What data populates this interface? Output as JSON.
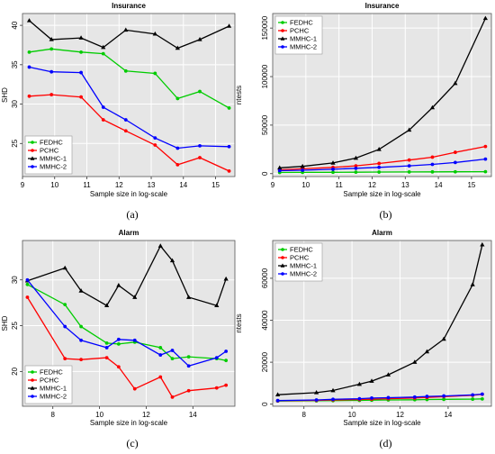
{
  "chart_data": [
    {
      "type": "line",
      "panel_label": "(a)",
      "title": "Insurance",
      "xlabel": "Sample size in log-scale",
      "ylabel": "SHD",
      "xlim": [
        9,
        15.6
      ],
      "ylim": [
        20.8,
        41.5
      ],
      "xticks": [
        9,
        10,
        11,
        12,
        13,
        14,
        15
      ],
      "yticks": [
        25,
        30,
        35,
        40
      ],
      "grid": true,
      "legend_position": "bottom-left",
      "x": [
        9.21,
        9.9,
        10.82,
        11.51,
        12.21,
        13.12,
        13.82,
        14.51,
        15.42
      ],
      "series": [
        {
          "name": "FEDHC",
          "color": "#00cc00",
          "marker": "circle",
          "values": [
            36.6,
            37.0,
            36.6,
            36.4,
            34.2,
            33.9,
            30.7,
            31.6,
            29.5
          ]
        },
        {
          "name": "PCHC",
          "color": "#ff0000",
          "marker": "circle",
          "values": [
            31.0,
            31.2,
            30.9,
            28.0,
            26.6,
            24.8,
            22.3,
            23.2,
            21.5
          ]
        },
        {
          "name": "MMHC-1",
          "color": "#000000",
          "marker": "triangle",
          "values": [
            40.6,
            38.2,
            38.4,
            37.2,
            39.4,
            38.9,
            37.1,
            38.2,
            39.9
          ]
        },
        {
          "name": "MMHC-2",
          "color": "#0000ff",
          "marker": "circle",
          "values": [
            34.7,
            34.1,
            34.0,
            29.6,
            28.0,
            25.7,
            24.4,
            24.7,
            24.6
          ]
        }
      ]
    },
    {
      "type": "line",
      "panel_label": "(b)",
      "title": "Insurance",
      "xlabel": "Sample size in log-scale",
      "ylabel": "ntests",
      "xlim": [
        9,
        15.6
      ],
      "ylim": [
        -3000,
        165000
      ],
      "xticks": [
        9,
        10,
        11,
        12,
        13,
        14,
        15
      ],
      "yticks": [
        0,
        50000,
        100000,
        150000
      ],
      "grid": true,
      "legend_position": "top-left",
      "x": [
        9.21,
        9.9,
        10.82,
        11.51,
        12.21,
        13.12,
        13.82,
        14.51,
        15.42
      ],
      "series": [
        {
          "name": "FEDHC",
          "color": "#00cc00",
          "marker": "circle",
          "values": [
            1200,
            1300,
            1400,
            1500,
            1600,
            1700,
            1800,
            1900,
            2000
          ]
        },
        {
          "name": "PCHC",
          "color": "#ff0000",
          "marker": "circle",
          "values": [
            4000,
            5000,
            6500,
            8000,
            10500,
            14000,
            17000,
            22000,
            28000
          ]
        },
        {
          "name": "MMHC-1",
          "color": "#000000",
          "marker": "triangle",
          "values": [
            6000,
            7500,
            11000,
            16000,
            25000,
            45000,
            68000,
            93000,
            160000
          ]
        },
        {
          "name": "MMHC-2",
          "color": "#0000ff",
          "marker": "circle",
          "values": [
            3000,
            3500,
            4500,
            5500,
            6500,
            8000,
            9500,
            11500,
            15000
          ]
        }
      ]
    },
    {
      "type": "line",
      "panel_label": "(c)",
      "title": "Alarm",
      "xlabel": "Sample size in log-scale",
      "ylabel": "SHD",
      "xlim": [
        6.7,
        15.8
      ],
      "ylim": [
        16.2,
        34.3
      ],
      "xticks": [
        8,
        10,
        12,
        14
      ],
      "yticks": [
        20,
        25,
        30
      ],
      "grid": true,
      "legend_position": "bottom-left",
      "x": [
        6.91,
        8.52,
        9.21,
        10.31,
        10.82,
        11.51,
        12.61,
        13.12,
        13.82,
        15.02,
        15.42
      ],
      "series": [
        {
          "name": "FEDHC",
          "color": "#00cc00",
          "marker": "circle",
          "values": [
            29.5,
            27.3,
            24.9,
            23.1,
            23.0,
            23.2,
            22.6,
            21.4,
            21.6,
            21.4,
            21.2
          ]
        },
        {
          "name": "PCHC",
          "color": "#ff0000",
          "marker": "circle",
          "values": [
            28.1,
            21.4,
            21.3,
            21.5,
            20.5,
            18.1,
            19.4,
            17.2,
            17.9,
            18.2,
            18.5
          ]
        },
        {
          "name": "MMHC-1",
          "color": "#000000",
          "marker": "triangle",
          "values": [
            29.9,
            31.3,
            28.8,
            27.2,
            29.4,
            28.1,
            33.7,
            32.1,
            28.1,
            27.2,
            30.1
          ]
        },
        {
          "name": "MMHC-2",
          "color": "#0000ff",
          "marker": "circle",
          "values": [
            30.0,
            24.9,
            23.4,
            22.6,
            23.5,
            23.4,
            21.8,
            22.3,
            20.6,
            21.5,
            22.2
          ]
        }
      ]
    },
    {
      "type": "line",
      "panel_label": "(d)",
      "title": "Alarm",
      "xlabel": "Sample size in log-scale",
      "ylabel": "ntests",
      "xlim": [
        6.7,
        15.8
      ],
      "ylim": [
        -1000,
        78000
      ],
      "xticks": [
        8,
        10,
        12,
        14
      ],
      "yticks": [
        0,
        20000,
        40000,
        60000
      ],
      "grid": true,
      "legend_position": "top-left",
      "x": [
        6.91,
        8.52,
        9.21,
        10.31,
        10.82,
        11.51,
        12.61,
        13.12,
        13.82,
        15.02,
        15.42
      ],
      "series": [
        {
          "name": "FEDHC",
          "color": "#00cc00",
          "marker": "circle",
          "values": [
            1500,
            1600,
            1700,
            1800,
            1900,
            2000,
            2100,
            2200,
            2300,
            2400,
            2500
          ]
        },
        {
          "name": "PCHC",
          "color": "#ff0000",
          "marker": "circle",
          "values": [
            1600,
            1800,
            2000,
            2200,
            2400,
            2600,
            2900,
            3200,
            3600,
            4200,
            4700
          ]
        },
        {
          "name": "MMHC-1",
          "color": "#000000",
          "marker": "triangle",
          "values": [
            4500,
            5500,
            6500,
            9500,
            11000,
            14000,
            20000,
            25000,
            31000,
            57000,
            76000
          ]
        },
        {
          "name": "MMHC-2",
          "color": "#0000ff",
          "marker": "circle",
          "values": [
            1700,
            2000,
            2300,
            2600,
            2900,
            3100,
            3400,
            3700,
            3900,
            4400,
            4800
          ]
        }
      ]
    }
  ]
}
